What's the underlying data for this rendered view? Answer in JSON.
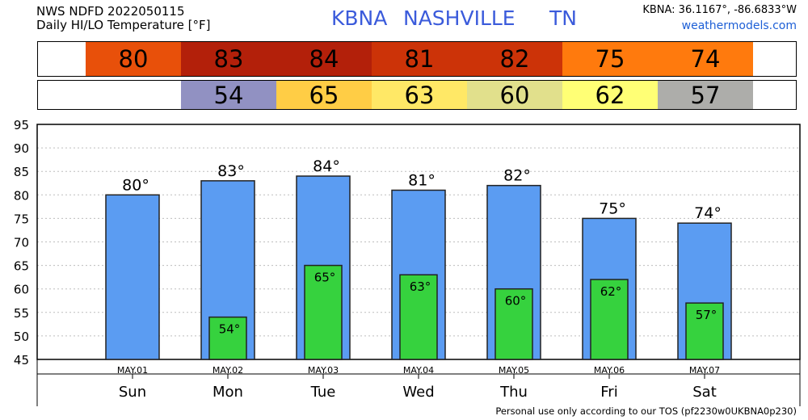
{
  "header": {
    "product": "NWS NDFD 2022050115",
    "subtitle": "Daily HI/LO Temperature [°F]",
    "station_code": "KBNA",
    "station_name": "NASHVILLE",
    "state": "TN",
    "coordinates": "KBNA: 36.1167°, -86.6833°W",
    "site": "weathermodels.com"
  },
  "strips": {
    "hi_colors": [
      "#e8500a",
      "#b3200a",
      "#b3200a",
      "#cc3308",
      "#cc3308",
      "#ff7a0d",
      "#ff7a0d"
    ],
    "lo_colors": [
      "",
      "#9191c2",
      "#ffcd45",
      "#ffe866",
      "#e1e08c",
      "#ffff75",
      "#adadaa"
    ]
  },
  "footer": "Personal use only according to our TOS (pf2230w0UKBNA0p230)",
  "chart_data": {
    "type": "bar",
    "categories": [
      "Sun",
      "Mon",
      "Tue",
      "Wed",
      "Thu",
      "Fri",
      "Sat"
    ],
    "dates": [
      "MAY.01",
      "MAY.02",
      "MAY.03",
      "MAY.04",
      "MAY.05",
      "MAY.06",
      "MAY.07"
    ],
    "series": [
      {
        "values": [
          80,
          83,
          84,
          81,
          82,
          75,
          74
        ],
        "labels": [
          "80°",
          "83°",
          "84°",
          "81°",
          "82°",
          "75°",
          "74°"
        ],
        "color": "#5b9cf2"
      },
      {
        "values": [
          null,
          54,
          65,
          63,
          60,
          62,
          57
        ],
        "labels": [
          "",
          "54°",
          "65°",
          "63°",
          "60°",
          "62°",
          "57°"
        ],
        "color": "#36d23e"
      }
    ],
    "hi_strip": [
      "80",
      "83",
      "84",
      "81",
      "82",
      "75",
      "74"
    ],
    "lo_strip": [
      "",
      "54",
      "65",
      "63",
      "60",
      "62",
      "57"
    ],
    "ylim": [
      45,
      95
    ],
    "yticks": [
      "45",
      "50",
      "55",
      "60",
      "65",
      "70",
      "75",
      "80",
      "85",
      "90",
      "95"
    ],
    "grid": true
  }
}
